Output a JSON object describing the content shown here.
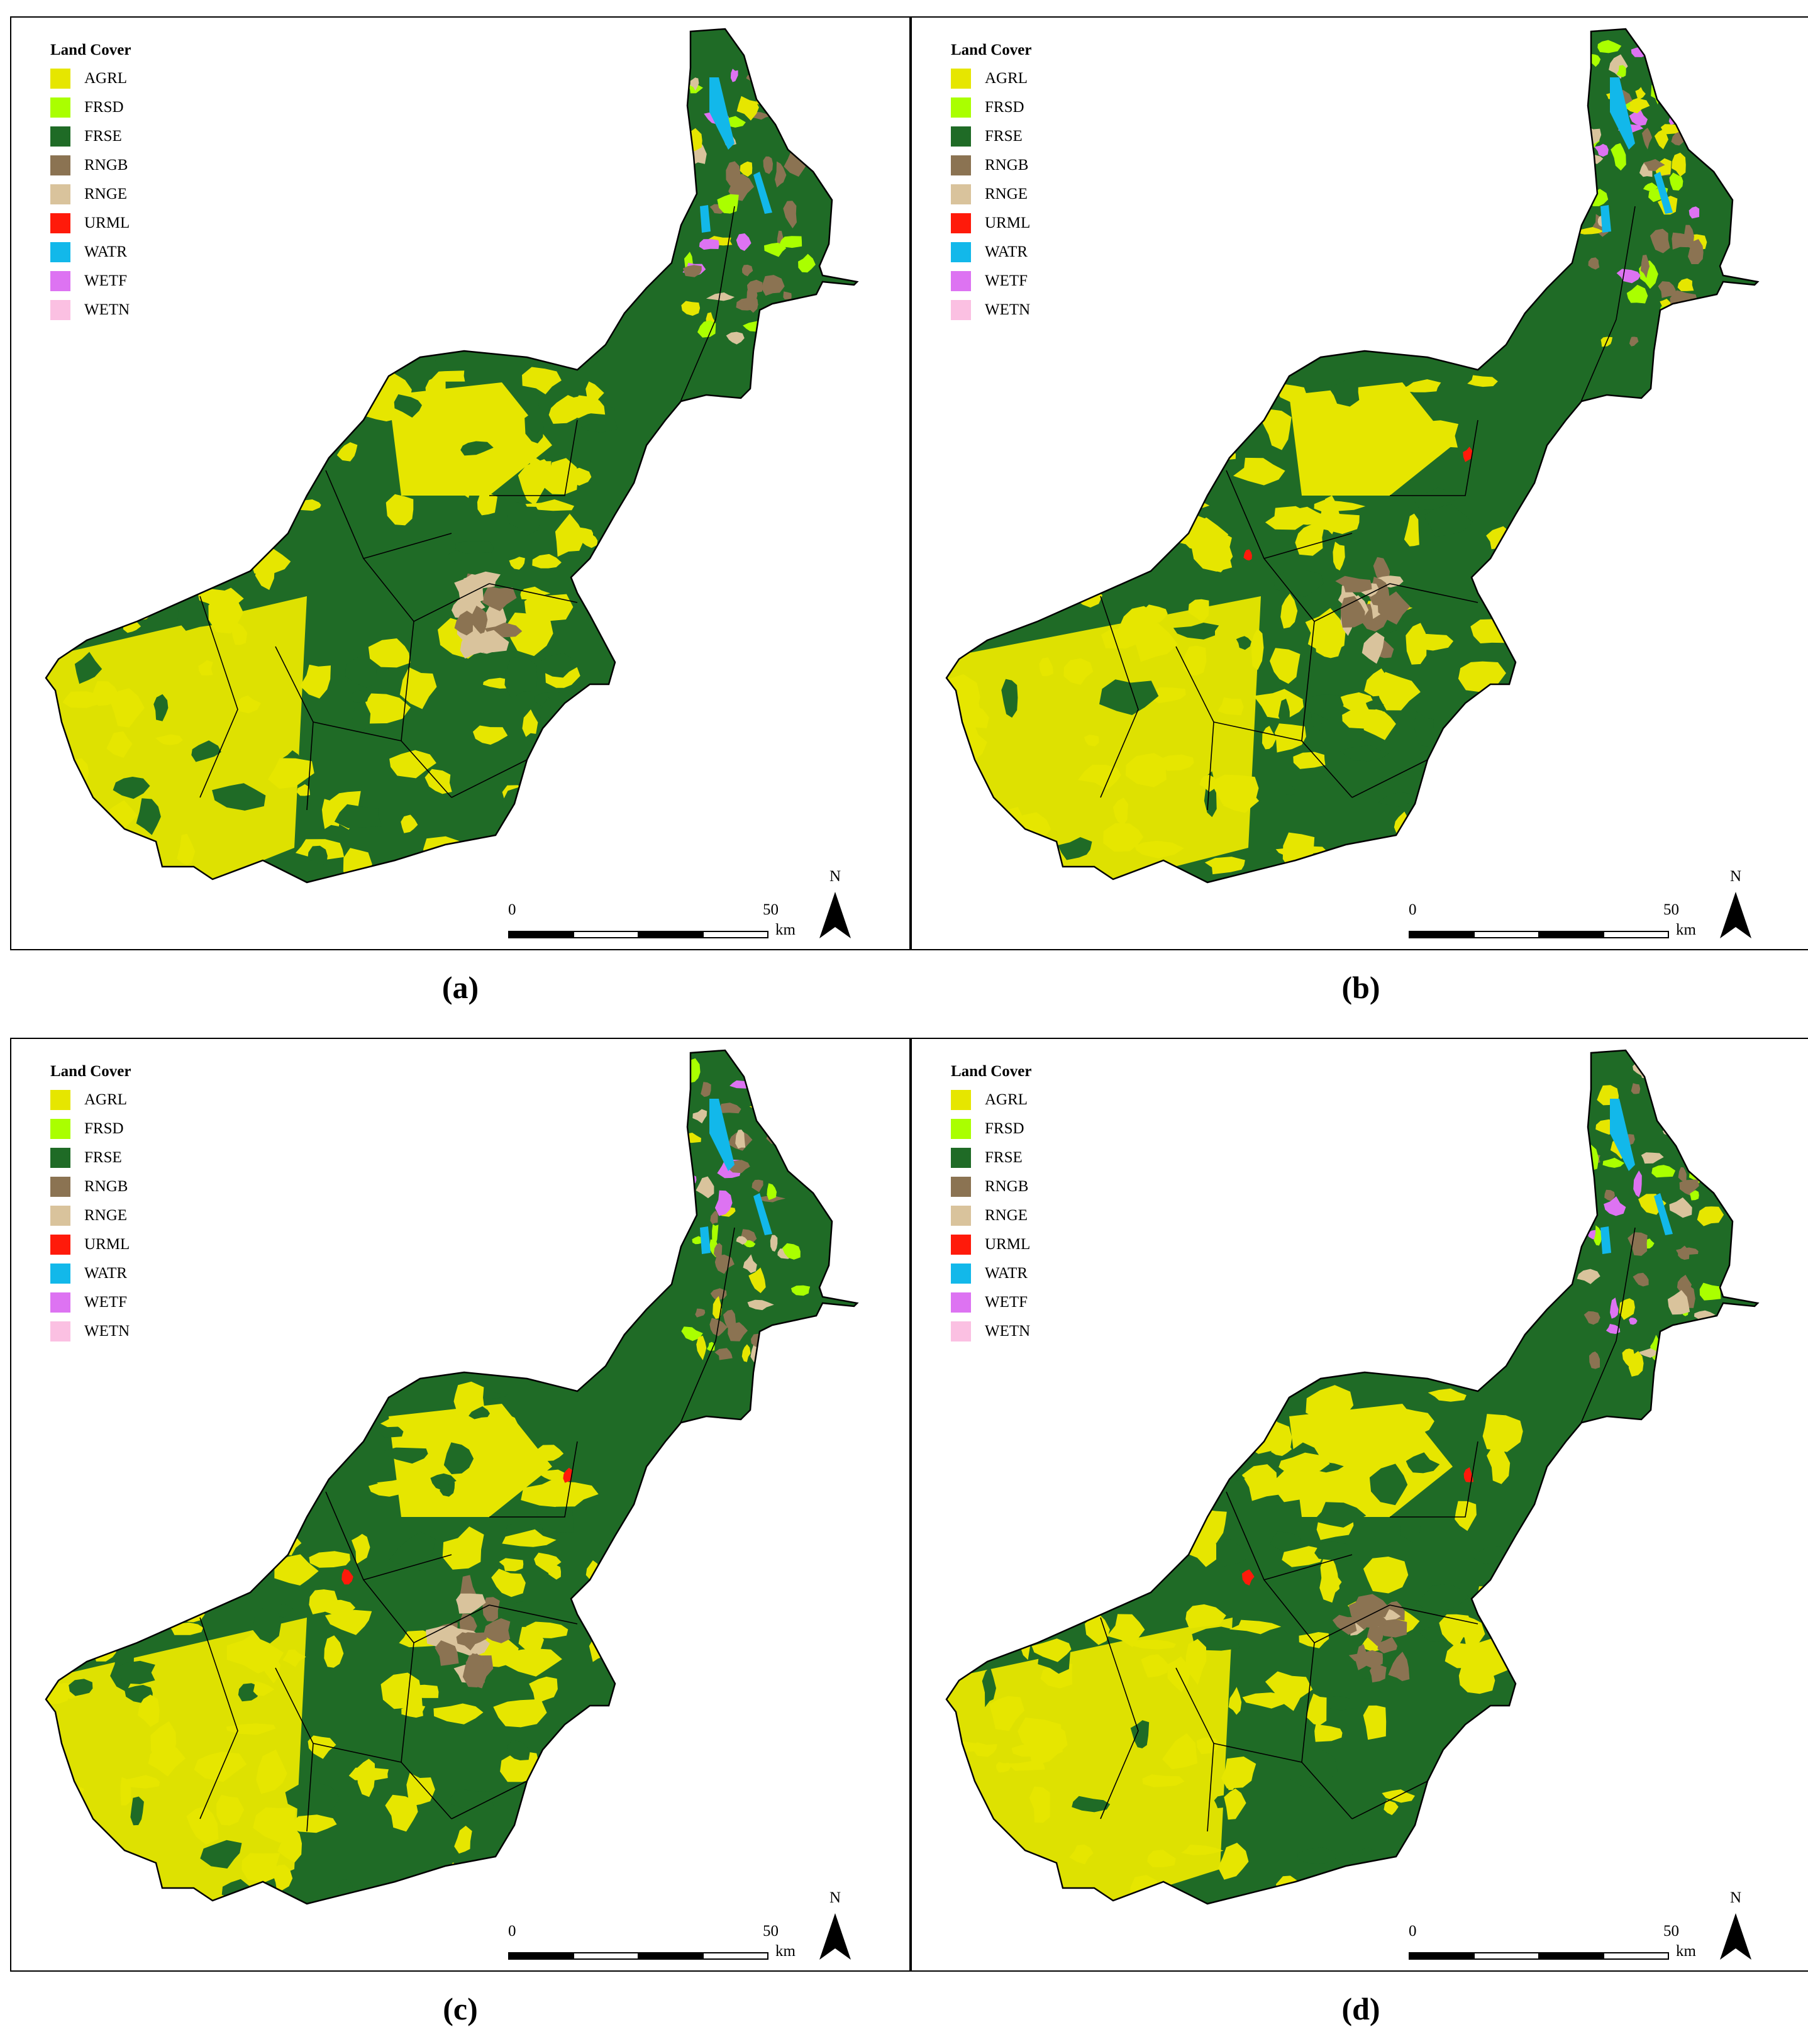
{
  "legend": {
    "title": "Land Cover",
    "items": [
      {
        "code": "AGRL",
        "color": "#E6E600"
      },
      {
        "code": "FRSD",
        "color": "#AAFF00"
      },
      {
        "code": "FRSE",
        "color": "#1F6B26"
      },
      {
        "code": "RNGB",
        "color": "#8B7352"
      },
      {
        "code": "RNGE",
        "color": "#D9C39C"
      },
      {
        "code": "URML",
        "color": "#FF1A0A"
      },
      {
        "code": "WATR",
        "color": "#12B8EA"
      },
      {
        "code": "WETF",
        "color": "#DD73F2"
      },
      {
        "code": "WETN",
        "color": "#FBC0E2"
      }
    ]
  },
  "scale": {
    "start": "0",
    "end": "50",
    "unit": "km"
  },
  "north_label": "N",
  "panels": [
    {
      "caption": "(a)"
    },
    {
      "caption": "(b)"
    },
    {
      "caption": "(c)"
    },
    {
      "caption": "(d)"
    }
  ]
}
